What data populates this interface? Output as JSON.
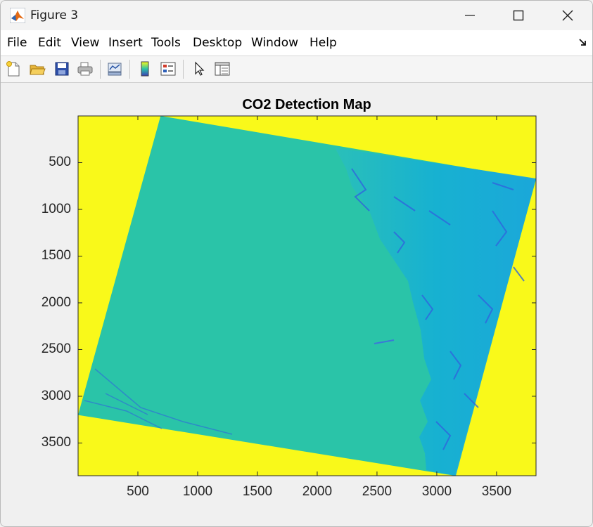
{
  "window": {
    "title": "Figure 3"
  },
  "menu": {
    "items": [
      "File",
      "Edit",
      "View",
      "Insert",
      "Tools",
      "Desktop",
      "Window",
      "Help"
    ]
  },
  "toolbar": {
    "icons": [
      "new-figure-icon",
      "open-file-icon",
      "save-icon",
      "print-icon",
      "link-plot-icon",
      "insert-colorbar-icon",
      "insert-legend-icon",
      "edit-plot-icon",
      "property-inspector-icon"
    ]
  },
  "chart_data": {
    "type": "heatmap",
    "title": "CO2 Detection Map",
    "xlabel": "",
    "ylabel": "",
    "xlim": [
      0,
      3830
    ],
    "ylim": [
      3850,
      0
    ],
    "x_ticks": [
      500,
      1000,
      1500,
      2000,
      2500,
      3000,
      3500
    ],
    "y_ticks": [
      500,
      1000,
      1500,
      2000,
      2500,
      3000,
      3500
    ],
    "image_corners": [
      [
        690,
        0
      ],
      [
        3830,
        680
      ],
      [
        3150,
        3850
      ],
      [
        0,
        3200
      ]
    ],
    "colors": {
      "background": "#f9f91a",
      "primary": "#2ac4a8",
      "secondary": "#17aed2",
      "detail": "#2f63e0"
    },
    "grid": false
  },
  "colors": {
    "yellow": "#f9f91a",
    "teal": "#2ac4a8"
  }
}
